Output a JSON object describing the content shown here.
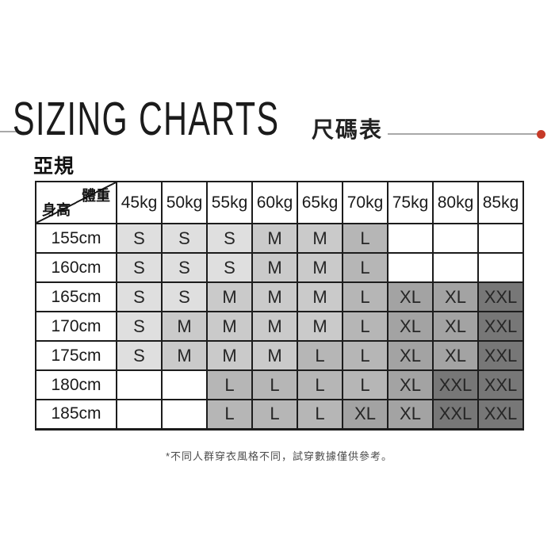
{
  "header": {
    "title_en": "SIZING CHARTS",
    "title_zh": "尺碼表"
  },
  "section": {
    "label": "亞規"
  },
  "chart_data": {
    "type": "table",
    "title": "SIZING CHARTS 尺碼表 亞規",
    "corner": {
      "top_right": "體重",
      "bottom_left": "身高"
    },
    "columns": [
      "45kg",
      "50kg",
      "55kg",
      "60kg",
      "65kg",
      "70kg",
      "75kg",
      "80kg",
      "85kg"
    ],
    "rows": [
      {
        "height": "155cm",
        "sizes": [
          "S",
          "S",
          "S",
          "M",
          "M",
          "L",
          "",
          "",
          ""
        ]
      },
      {
        "height": "160cm",
        "sizes": [
          "S",
          "S",
          "S",
          "M",
          "M",
          "L",
          "",
          "",
          ""
        ]
      },
      {
        "height": "165cm",
        "sizes": [
          "S",
          "S",
          "M",
          "M",
          "M",
          "L",
          "XL",
          "XL",
          "XXL"
        ]
      },
      {
        "height": "170cm",
        "sizes": [
          "S",
          "M",
          "M",
          "M",
          "M",
          "L",
          "XL",
          "XL",
          "XXL"
        ]
      },
      {
        "height": "175cm",
        "sizes": [
          "S",
          "M",
          "M",
          "M",
          "L",
          "L",
          "XL",
          "XL",
          "XXL"
        ]
      },
      {
        "height": "180cm",
        "sizes": [
          "",
          "",
          "L",
          "L",
          "L",
          "L",
          "XL",
          "XXL",
          "XXL"
        ]
      },
      {
        "height": "185cm",
        "sizes": [
          "",
          "",
          "L",
          "L",
          "L",
          "XL",
          "XL",
          "XXL",
          "XXL"
        ]
      }
    ]
  },
  "footnote": "*不同人群穿衣風格不同，試穿數據僅供參考。",
  "colors": {
    "accent_dot": "#c63a28",
    "rule_line": "#a9a9a9",
    "border": "#1c1c1c",
    "size_s": "#dfdfdf",
    "size_m": "#cacaca",
    "size_l": "#b6b6b6",
    "size_xl": "#a3a3a3",
    "size_xxl": "#777777",
    "size_xxl_text": "#ffffff"
  }
}
